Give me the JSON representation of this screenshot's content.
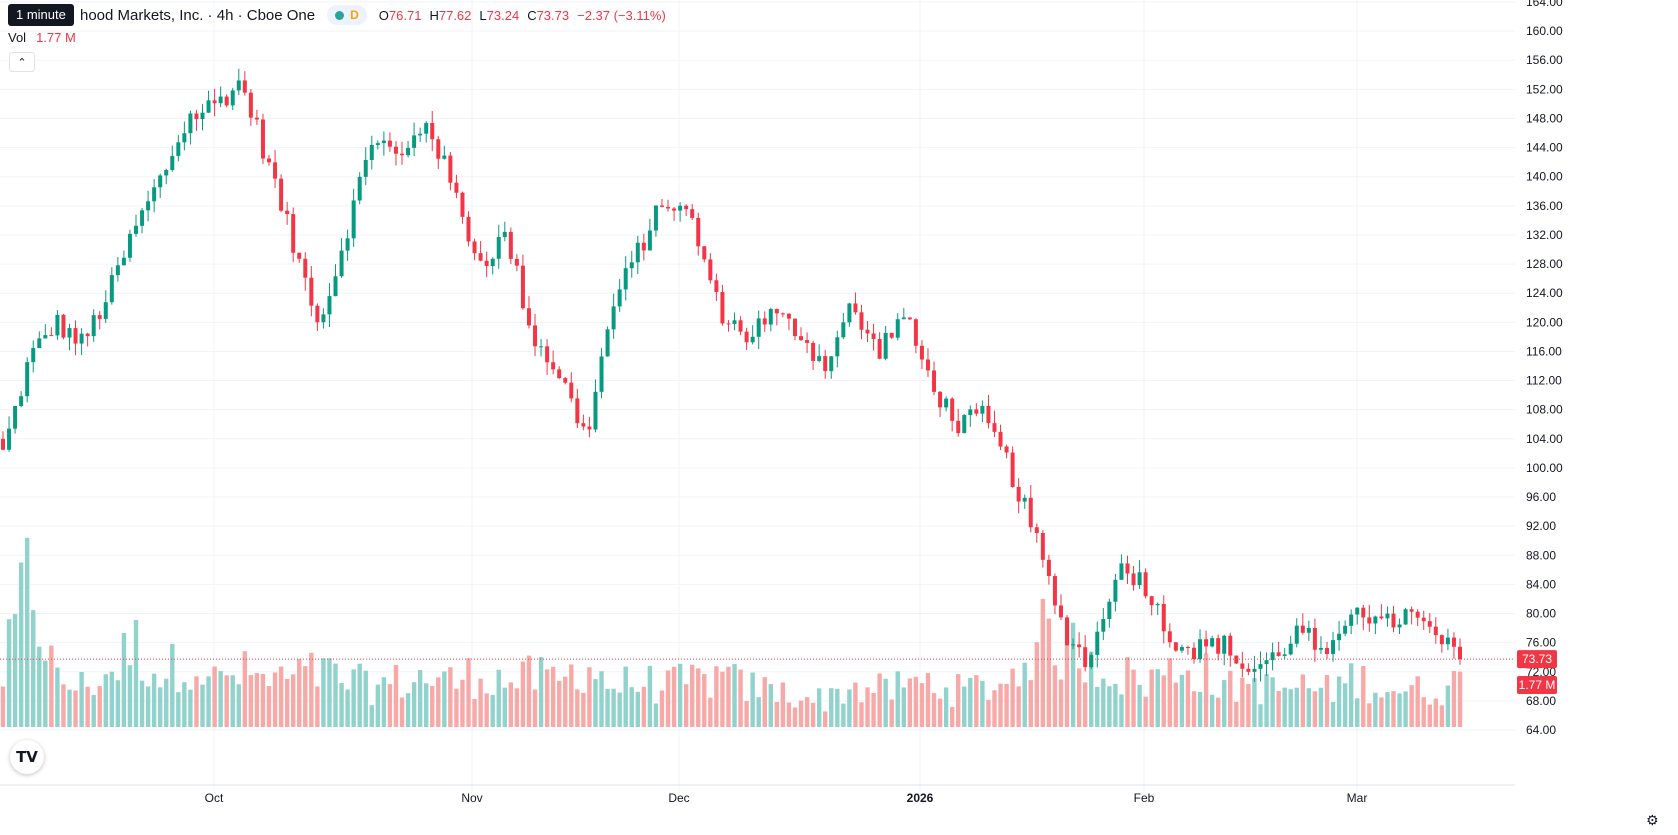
{
  "legend": {
    "tooltip": "1 minute",
    "title": "hood Markets, Inc. · 4h · Cboe One",
    "interval_badge": "D",
    "open_label": "O",
    "open": "76.71",
    "high_label": "H",
    "high": "77.62",
    "low_label": "L",
    "low": "73.24",
    "close_label": "C",
    "close": "73.73",
    "change": "−2.37 (−3.11%)",
    "vol_label": "Vol",
    "vol_value": "1.77 M"
  },
  "colors": {
    "up": "#089981",
    "down": "#f23645",
    "up_vol": "#92d2cc",
    "down_vol": "#f7a9a7",
    "grid": "#f0f3fa"
  },
  "icons": {
    "collapse": "chevron-up-icon",
    "logo": "tradingview-logo",
    "settings": "gear-icon"
  },
  "logo_text": "TV",
  "price_badge": "73.73",
  "volume_badge": "1.77 M",
  "chart_data": {
    "type": "candlestick",
    "y_ticks": [
      "164.00",
      "160.00",
      "156.00",
      "152.00",
      "148.00",
      "144.00",
      "140.00",
      "136.00",
      "132.00",
      "128.00",
      "124.00",
      "120.00",
      "116.00",
      "112.00",
      "108.00",
      "104.00",
      "100.00",
      "96.00",
      "92.00",
      "88.00",
      "84.00",
      "80.00",
      "76.00",
      "72.00",
      "68.00",
      "64.00"
    ],
    "x_labels": [
      "Oct",
      "Nov",
      "Dec",
      "2026",
      "Feb",
      "Mar"
    ],
    "ylim": [
      62,
      164
    ],
    "last_price": 73.73,
    "anchors": [
      {
        "date": "Sep 22",
        "close": 102,
        "vol": 0.55
      },
      {
        "date": "Sep 24",
        "close": 115,
        "vol": 1.7
      },
      {
        "date": "Sep 26",
        "close": 120,
        "vol": 0.5
      },
      {
        "date": "Sep 28",
        "close": 117,
        "vol": 0.45
      },
      {
        "date": "Sep 30",
        "close": 124,
        "vol": 0.6
      },
      {
        "date": "Oct 1",
        "close": 133,
        "vol": 0.9
      },
      {
        "date": "Oct 3",
        "close": 140,
        "vol": 0.55
      },
      {
        "date": "Oct 5",
        "close": 148,
        "vol": 0.8
      },
      {
        "date": "Oct 7",
        "close": 150,
        "vol": 0.5
      },
      {
        "date": "Oct 9",
        "close": 153,
        "vol": 0.6
      },
      {
        "date": "Oct 12",
        "close": 142,
        "vol": 0.5
      },
      {
        "date": "Oct 15",
        "close": 130,
        "vol": 0.55
      },
      {
        "date": "Oct 18",
        "close": 120,
        "vol": 0.6
      },
      {
        "date": "Oct 21",
        "close": 133,
        "vol": 0.5
      },
      {
        "date": "Oct 24",
        "close": 146,
        "vol": 0.45
      },
      {
        "date": "Oct 27",
        "close": 142,
        "vol": 0.5
      },
      {
        "date": "Oct 30",
        "close": 148,
        "vol": 0.55
      },
      {
        "date": "Nov 2",
        "close": 138,
        "vol": 0.5
      },
      {
        "date": "Nov 6",
        "close": 128,
        "vol": 0.6
      },
      {
        "date": "Nov 10",
        "close": 132,
        "vol": 0.5
      },
      {
        "date": "Nov 14",
        "close": 118,
        "vol": 0.55
      },
      {
        "date": "Nov 18",
        "close": 113,
        "vol": 0.5
      },
      {
        "date": "Nov 22",
        "close": 104,
        "vol": 0.7
      },
      {
        "date": "Nov 26",
        "close": 122,
        "vol": 0.45
      },
      {
        "date": "Dec 1",
        "close": 130,
        "vol": 0.5
      },
      {
        "date": "Dec 5",
        "close": 137,
        "vol": 0.45
      },
      {
        "date": "Dec 9",
        "close": 134,
        "vol": 0.5
      },
      {
        "date": "Dec 12",
        "close": 122,
        "vol": 0.55
      },
      {
        "date": "Dec 16",
        "close": 118,
        "vol": 0.45
      },
      {
        "date": "Dec 20",
        "close": 121,
        "vol": 0.4
      },
      {
        "date": "Dec 24",
        "close": 119,
        "vol": 0.35
      },
      {
        "date": "Dec 28",
        "close": 114,
        "vol": 0.3
      },
      {
        "date": "Jan 1",
        "close": 122,
        "vol": 0.45
      },
      {
        "date": "Jan 5",
        "close": 116,
        "vol": 0.4
      },
      {
        "date": "Jan 9",
        "close": 121,
        "vol": 0.45
      },
      {
        "date": "Jan 13",
        "close": 112,
        "vol": 0.5
      },
      {
        "date": "Jan 17",
        "close": 106,
        "vol": 0.4
      },
      {
        "date": "Jan 21",
        "close": 107,
        "vol": 0.45
      },
      {
        "date": "Jan 25",
        "close": 100,
        "vol": 0.5
      },
      {
        "date": "Jan 29",
        "close": 90,
        "vol": 1.0
      },
      {
        "date": "Feb 1",
        "close": 78,
        "vol": 0.9
      },
      {
        "date": "Feb 3",
        "close": 73,
        "vol": 0.8
      },
      {
        "date": "Feb 5",
        "close": 86,
        "vol": 0.6
      },
      {
        "date": "Feb 7",
        "close": 85,
        "vol": 0.5
      },
      {
        "date": "Feb 10",
        "close": 77,
        "vol": 0.6
      },
      {
        "date": "Feb 13",
        "close": 75,
        "vol": 0.7
      },
      {
        "date": "Feb 16",
        "close": 76,
        "vol": 0.4
      },
      {
        "date": "Feb 19",
        "close": 72,
        "vol": 0.5
      },
      {
        "date": "Feb 22",
        "close": 74,
        "vol": 0.4
      },
      {
        "date": "Feb 25",
        "close": 78,
        "vol": 0.45
      },
      {
        "date": "Feb 27",
        "close": 73,
        "vol": 0.4
      },
      {
        "date": "Mar 2",
        "close": 82,
        "vol": 0.55
      },
      {
        "date": "Mar 4",
        "close": 78,
        "vol": 0.45
      },
      {
        "date": "Mar 7",
        "close": 80,
        "vol": 0.4
      },
      {
        "date": "Mar 10",
        "close": 77,
        "vol": 0.4
      },
      {
        "date": "Mar 12",
        "close": 73.73,
        "vol": 0.5
      }
    ]
  }
}
